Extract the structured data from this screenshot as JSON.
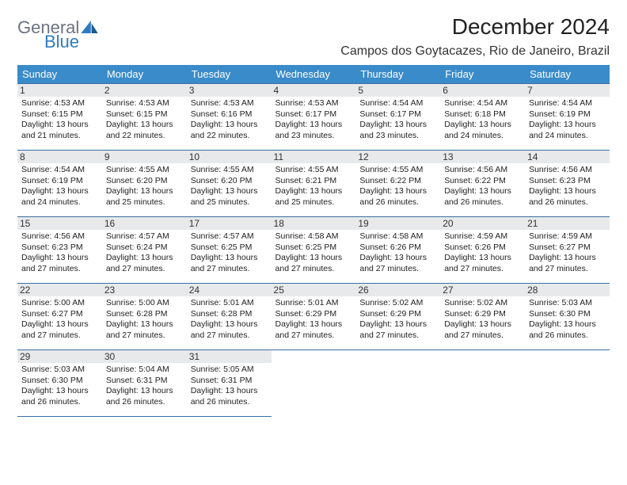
{
  "logo": {
    "text_general": "General",
    "text_blue": "Blue"
  },
  "title": "December 2024",
  "location": "Campos dos Goytacazes, Rio de Janeiro, Brazil",
  "colors": {
    "header_bg": "#3a8bc9",
    "header_text": "#ffffff",
    "cell_border": "#3a6ea5",
    "daynum_bg": "#e8e9ea",
    "logo_gray": "#6b7280",
    "logo_blue": "#2f7bbf",
    "page_bg": "#ffffff",
    "body_text": "#222222"
  },
  "days_of_week": [
    "Sunday",
    "Monday",
    "Tuesday",
    "Wednesday",
    "Thursday",
    "Friday",
    "Saturday"
  ],
  "weeks": [
    [
      {
        "n": "1",
        "sunrise": "4:53 AM",
        "sunset": "6:15 PM",
        "day_h": "13",
        "day_m": "21"
      },
      {
        "n": "2",
        "sunrise": "4:53 AM",
        "sunset": "6:15 PM",
        "day_h": "13",
        "day_m": "22"
      },
      {
        "n": "3",
        "sunrise": "4:53 AM",
        "sunset": "6:16 PM",
        "day_h": "13",
        "day_m": "22"
      },
      {
        "n": "4",
        "sunrise": "4:53 AM",
        "sunset": "6:17 PM",
        "day_h": "13",
        "day_m": "23"
      },
      {
        "n": "5",
        "sunrise": "4:54 AM",
        "sunset": "6:17 PM",
        "day_h": "13",
        "day_m": "23"
      },
      {
        "n": "6",
        "sunrise": "4:54 AM",
        "sunset": "6:18 PM",
        "day_h": "13",
        "day_m": "24"
      },
      {
        "n": "7",
        "sunrise": "4:54 AM",
        "sunset": "6:19 PM",
        "day_h": "13",
        "day_m": "24"
      }
    ],
    [
      {
        "n": "8",
        "sunrise": "4:54 AM",
        "sunset": "6:19 PM",
        "day_h": "13",
        "day_m": "24"
      },
      {
        "n": "9",
        "sunrise": "4:55 AM",
        "sunset": "6:20 PM",
        "day_h": "13",
        "day_m": "25"
      },
      {
        "n": "10",
        "sunrise": "4:55 AM",
        "sunset": "6:20 PM",
        "day_h": "13",
        "day_m": "25"
      },
      {
        "n": "11",
        "sunrise": "4:55 AM",
        "sunset": "6:21 PM",
        "day_h": "13",
        "day_m": "25"
      },
      {
        "n": "12",
        "sunrise": "4:55 AM",
        "sunset": "6:22 PM",
        "day_h": "13",
        "day_m": "26"
      },
      {
        "n": "13",
        "sunrise": "4:56 AM",
        "sunset": "6:22 PM",
        "day_h": "13",
        "day_m": "26"
      },
      {
        "n": "14",
        "sunrise": "4:56 AM",
        "sunset": "6:23 PM",
        "day_h": "13",
        "day_m": "26"
      }
    ],
    [
      {
        "n": "15",
        "sunrise": "4:56 AM",
        "sunset": "6:23 PM",
        "day_h": "13",
        "day_m": "27"
      },
      {
        "n": "16",
        "sunrise": "4:57 AM",
        "sunset": "6:24 PM",
        "day_h": "13",
        "day_m": "27"
      },
      {
        "n": "17",
        "sunrise": "4:57 AM",
        "sunset": "6:25 PM",
        "day_h": "13",
        "day_m": "27"
      },
      {
        "n": "18",
        "sunrise": "4:58 AM",
        "sunset": "6:25 PM",
        "day_h": "13",
        "day_m": "27"
      },
      {
        "n": "19",
        "sunrise": "4:58 AM",
        "sunset": "6:26 PM",
        "day_h": "13",
        "day_m": "27"
      },
      {
        "n": "20",
        "sunrise": "4:59 AM",
        "sunset": "6:26 PM",
        "day_h": "13",
        "day_m": "27"
      },
      {
        "n": "21",
        "sunrise": "4:59 AM",
        "sunset": "6:27 PM",
        "day_h": "13",
        "day_m": "27"
      }
    ],
    [
      {
        "n": "22",
        "sunrise": "5:00 AM",
        "sunset": "6:27 PM",
        "day_h": "13",
        "day_m": "27"
      },
      {
        "n": "23",
        "sunrise": "5:00 AM",
        "sunset": "6:28 PM",
        "day_h": "13",
        "day_m": "27"
      },
      {
        "n": "24",
        "sunrise": "5:01 AM",
        "sunset": "6:28 PM",
        "day_h": "13",
        "day_m": "27"
      },
      {
        "n": "25",
        "sunrise": "5:01 AM",
        "sunset": "6:29 PM",
        "day_h": "13",
        "day_m": "27"
      },
      {
        "n": "26",
        "sunrise": "5:02 AM",
        "sunset": "6:29 PM",
        "day_h": "13",
        "day_m": "27"
      },
      {
        "n": "27",
        "sunrise": "5:02 AM",
        "sunset": "6:29 PM",
        "day_h": "13",
        "day_m": "27"
      },
      {
        "n": "28",
        "sunrise": "5:03 AM",
        "sunset": "6:30 PM",
        "day_h": "13",
        "day_m": "26"
      }
    ],
    [
      {
        "n": "29",
        "sunrise": "5:03 AM",
        "sunset": "6:30 PM",
        "day_h": "13",
        "day_m": "26"
      },
      {
        "n": "30",
        "sunrise": "5:04 AM",
        "sunset": "6:31 PM",
        "day_h": "13",
        "day_m": "26"
      },
      {
        "n": "31",
        "sunrise": "5:05 AM",
        "sunset": "6:31 PM",
        "day_h": "13",
        "day_m": "26"
      },
      null,
      null,
      null,
      null
    ]
  ],
  "labels": {
    "sunrise_prefix": "Sunrise: ",
    "sunset_prefix": "Sunset: ",
    "daylight_prefix": "Daylight: ",
    "hours_word": " hours",
    "and_word": "and ",
    "minutes_word": " minutes."
  }
}
